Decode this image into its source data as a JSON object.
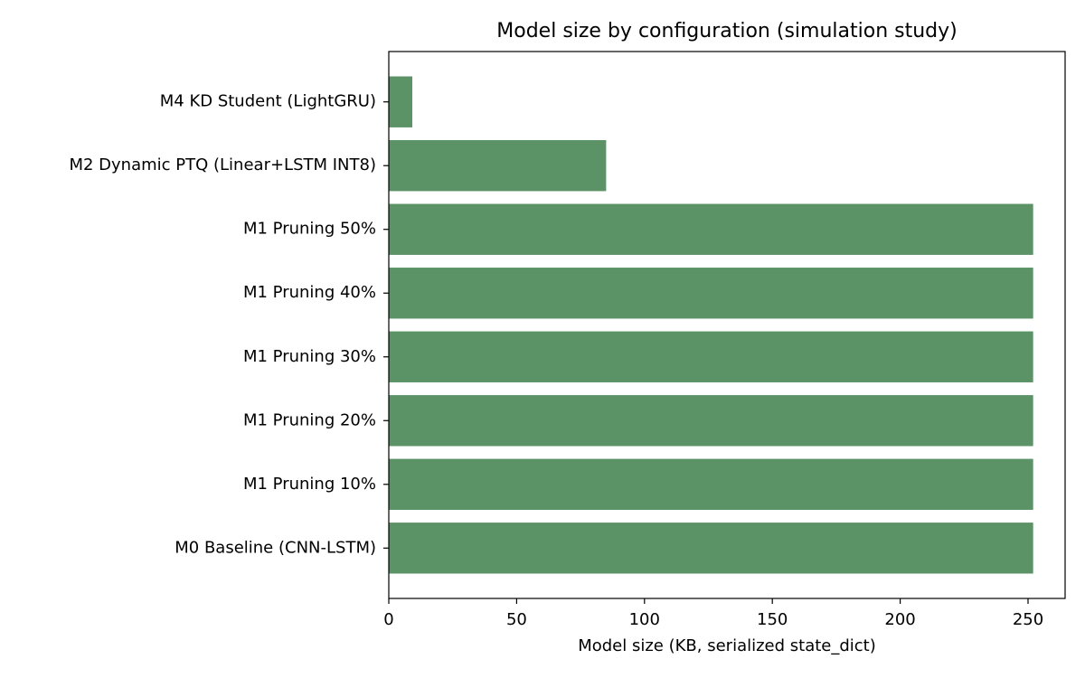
{
  "chart_data": {
    "type": "barh",
    "title": "Model size by configuration (simulation study)",
    "xlabel": "Model size (KB, serialized state_dict)",
    "categories": [
      "M0 Baseline (CNN-LSTM)",
      "M1 Pruning 10%",
      "M1 Pruning 20%",
      "M1 Pruning 30%",
      "M1 Pruning 40%",
      "M1 Pruning 50%",
      "M2 Dynamic PTQ (Linear+LSTM INT8)",
      "M4 KD Student (LightGRU)"
    ],
    "values": [
      252,
      252,
      252,
      252,
      252,
      252,
      85,
      9.2
    ],
    "color": "#5b9367",
    "xlim": [
      0,
      264.5
    ],
    "xticks": [
      0,
      50,
      100,
      150,
      200,
      250
    ]
  }
}
